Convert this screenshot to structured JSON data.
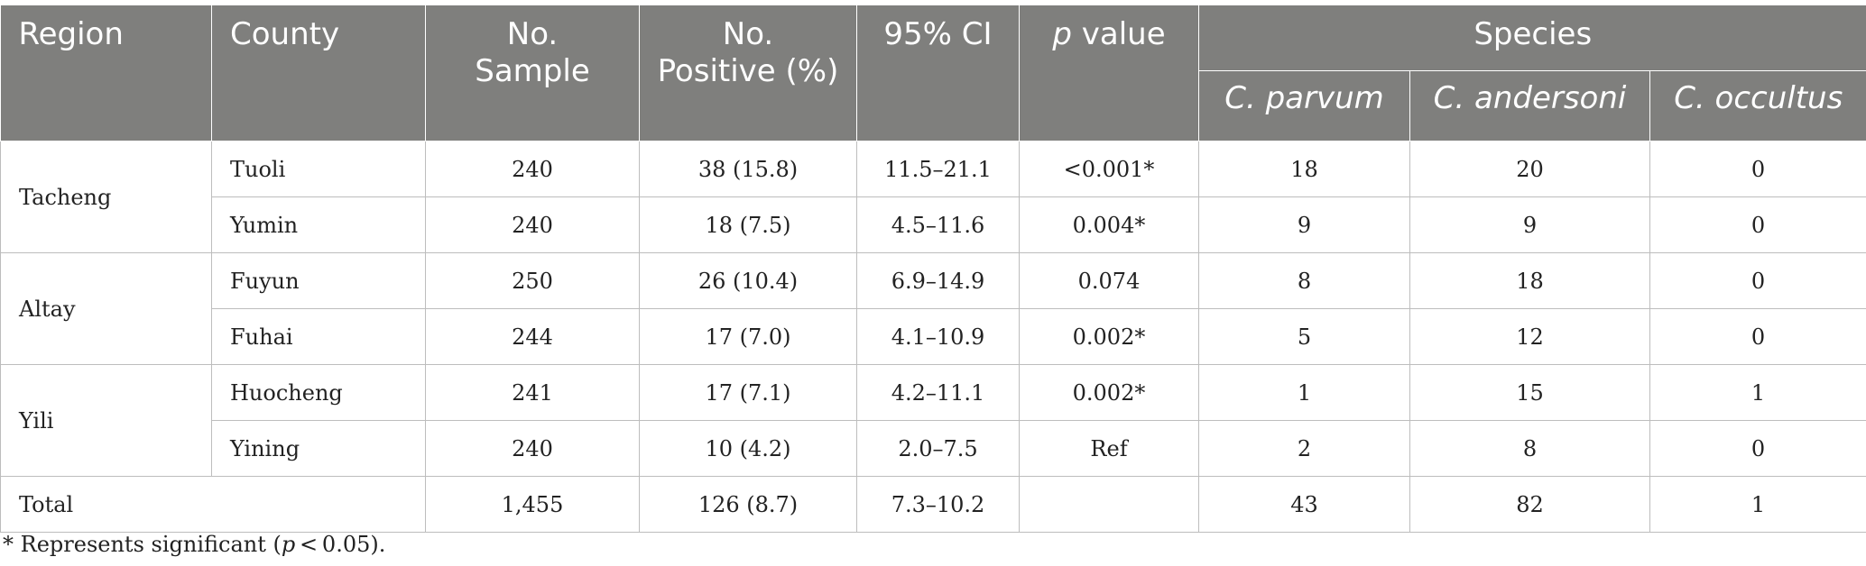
{
  "header": {
    "region": "Region",
    "county": "County",
    "no_sample_1": "No.",
    "no_sample_2": "Sample",
    "no_positive_1": "No.",
    "no_positive_2": "Positive (%)",
    "ci": "95% CI",
    "p_italic": "p",
    "p_rest": " value",
    "species": "Species",
    "species_cols": [
      "C. parvum",
      "C. andersoni",
      "C. occultus"
    ]
  },
  "regions": [
    {
      "name": "Tacheng",
      "rows": [
        {
          "county": "Tuoli",
          "sample": "240",
          "positive": "38 (15.8)",
          "ci": "11.5–21.1",
          "p": "<0.001*",
          "parvum": "18",
          "andersoni": "20",
          "occultus": "0"
        },
        {
          "county": "Yumin",
          "sample": "240",
          "positive": "18 (7.5)",
          "ci": "4.5–11.6",
          "p": "0.004*",
          "parvum": "9",
          "andersoni": "9",
          "occultus": "0"
        }
      ]
    },
    {
      "name": "Altay",
      "rows": [
        {
          "county": "Fuyun",
          "sample": "250",
          "positive": "26 (10.4)",
          "ci": "6.9–14.9",
          "p": "0.074",
          "parvum": "8",
          "andersoni": "18",
          "occultus": "0"
        },
        {
          "county": "Fuhai",
          "sample": "244",
          "positive": "17 (7.0)",
          "ci": "4.1–10.9",
          "p": "0.002*",
          "parvum": "5",
          "andersoni": "12",
          "occultus": "0"
        }
      ]
    },
    {
      "name": "Yili",
      "rows": [
        {
          "county": "Huocheng",
          "sample": "241",
          "positive": "17 (7.1)",
          "ci": "4.2–11.1",
          "p": "0.002*",
          "parvum": "1",
          "andersoni": "15",
          "occultus": "1"
        },
        {
          "county": "Yining",
          "sample": "240",
          "positive": "10 (4.2)",
          "ci": "2.0–7.5",
          "p": "Ref",
          "parvum": "2",
          "andersoni": "8",
          "occultus": "0"
        }
      ]
    }
  ],
  "total": {
    "label": "Total",
    "sample": "1,455",
    "positive": "126 (8.7)",
    "ci": "7.3–10.2",
    "p": "",
    "parvum": "43",
    "andersoni": "82",
    "occultus": "1"
  },
  "footnote": {
    "prefix": "* Represents significant (",
    "p_italic": "p",
    "suffix": " < 0.05)."
  }
}
